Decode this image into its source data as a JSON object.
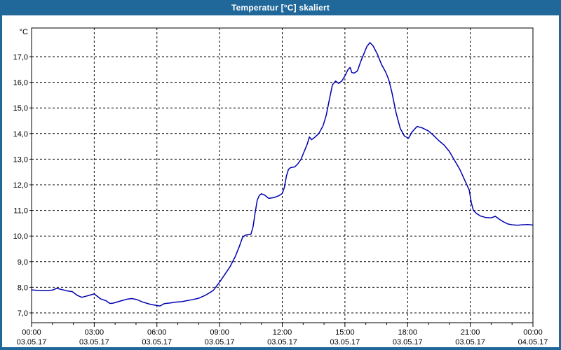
{
  "window": {
    "title": "Temperatur [°C] skaliert",
    "titlebar_color": "#1F6899",
    "border_color": "#1F6899"
  },
  "chart_data": {
    "type": "line",
    "title": "Temperatur [°C] skaliert",
    "unit_label": "°C",
    "series_name": "Temperatur",
    "series_color": "#0000B0",
    "grid": "dashed-black",
    "legend": "none",
    "xlim_hours": [
      0,
      24
    ],
    "ylim": [
      6.6,
      18.1
    ],
    "y_ticks": [
      {
        "value": 7,
        "label": "7,0"
      },
      {
        "value": 8,
        "label": "8,0"
      },
      {
        "value": 9,
        "label": "9,0"
      },
      {
        "value": 10,
        "label": "10,0"
      },
      {
        "value": 11,
        "label": "11,0"
      },
      {
        "value": 12,
        "label": "12,0"
      },
      {
        "value": 13,
        "label": "13,0"
      },
      {
        "value": 14,
        "label": "14,0"
      },
      {
        "value": 15,
        "label": "15,0"
      },
      {
        "value": 16,
        "label": "16,0"
      },
      {
        "value": 17,
        "label": "17,0"
      }
    ],
    "x_ticks": [
      {
        "hour": 0,
        "time": "00:00",
        "date": "03.05.17"
      },
      {
        "hour": 3,
        "time": "03:00",
        "date": "03.05.17"
      },
      {
        "hour": 6,
        "time": "06:00",
        "date": "03.05.17"
      },
      {
        "hour": 9,
        "time": "09:00",
        "date": "03.05.17"
      },
      {
        "hour": 12,
        "time": "12:00",
        "date": "03.05.17"
      },
      {
        "hour": 15,
        "time": "15:00",
        "date": "03.05.17"
      },
      {
        "hour": 18,
        "time": "18:00",
        "date": "03.05.17"
      },
      {
        "hour": 21,
        "time": "21:00",
        "date": "03.05.17"
      },
      {
        "hour": 24,
        "time": "00:00",
        "date": "04.05.17"
      }
    ],
    "x_minor_tick_every_hours": 1,
    "points": [
      [
        0.0,
        7.9
      ],
      [
        0.25,
        7.88
      ],
      [
        0.5,
        7.87
      ],
      [
        0.75,
        7.87
      ],
      [
        1.0,
        7.89
      ],
      [
        1.2,
        7.96
      ],
      [
        1.4,
        7.92
      ],
      [
        1.7,
        7.86
      ],
      [
        1.95,
        7.83
      ],
      [
        2.2,
        7.68
      ],
      [
        2.4,
        7.61
      ],
      [
        2.6,
        7.65
      ],
      [
        3.0,
        7.74
      ],
      [
        3.3,
        7.55
      ],
      [
        3.55,
        7.48
      ],
      [
        3.75,
        7.37
      ],
      [
        3.9,
        7.38
      ],
      [
        4.2,
        7.45
      ],
      [
        4.6,
        7.54
      ],
      [
        4.8,
        7.56
      ],
      [
        5.05,
        7.52
      ],
      [
        5.3,
        7.43
      ],
      [
        5.7,
        7.33
      ],
      [
        6.0,
        7.29
      ],
      [
        6.15,
        7.27
      ],
      [
        6.35,
        7.36
      ],
      [
        6.65,
        7.39
      ],
      [
        6.9,
        7.42
      ],
      [
        7.2,
        7.44
      ],
      [
        7.65,
        7.51
      ],
      [
        8.0,
        7.57
      ],
      [
        8.3,
        7.68
      ],
      [
        8.55,
        7.8
      ],
      [
        8.7,
        7.88
      ],
      [
        9.0,
        8.2
      ],
      [
        9.25,
        8.5
      ],
      [
        9.5,
        8.8
      ],
      [
        9.75,
        9.2
      ],
      [
        9.95,
        9.6
      ],
      [
        10.1,
        9.95
      ],
      [
        10.25,
        10.04
      ],
      [
        10.5,
        10.07
      ],
      [
        10.6,
        10.35
      ],
      [
        10.7,
        10.9
      ],
      [
        10.8,
        11.4
      ],
      [
        10.9,
        11.58
      ],
      [
        11.0,
        11.65
      ],
      [
        11.15,
        11.6
      ],
      [
        11.35,
        11.47
      ],
      [
        11.6,
        11.5
      ],
      [
        11.85,
        11.58
      ],
      [
        12.0,
        11.66
      ],
      [
        12.1,
        11.9
      ],
      [
        12.2,
        12.35
      ],
      [
        12.3,
        12.6
      ],
      [
        12.4,
        12.67
      ],
      [
        12.6,
        12.7
      ],
      [
        12.75,
        12.82
      ],
      [
        12.9,
        13.0
      ],
      [
        13.05,
        13.3
      ],
      [
        13.2,
        13.6
      ],
      [
        13.3,
        13.87
      ],
      [
        13.4,
        13.76
      ],
      [
        13.55,
        13.85
      ],
      [
        13.75,
        14.0
      ],
      [
        13.95,
        14.3
      ],
      [
        14.1,
        14.7
      ],
      [
        14.25,
        15.3
      ],
      [
        14.4,
        15.9
      ],
      [
        14.55,
        16.05
      ],
      [
        14.7,
        15.96
      ],
      [
        14.85,
        16.05
      ],
      [
        15.0,
        16.25
      ],
      [
        15.15,
        16.5
      ],
      [
        15.25,
        16.58
      ],
      [
        15.33,
        16.38
      ],
      [
        15.45,
        16.36
      ],
      [
        15.6,
        16.45
      ],
      [
        15.75,
        16.8
      ],
      [
        15.9,
        17.1
      ],
      [
        16.05,
        17.4
      ],
      [
        16.2,
        17.55
      ],
      [
        16.35,
        17.42
      ],
      [
        16.55,
        17.1
      ],
      [
        16.75,
        16.7
      ],
      [
        16.95,
        16.4
      ],
      [
        17.1,
        16.1
      ],
      [
        17.25,
        15.6
      ],
      [
        17.45,
        14.8
      ],
      [
        17.65,
        14.2
      ],
      [
        17.85,
        13.9
      ],
      [
        18.05,
        13.82
      ],
      [
        18.2,
        14.05
      ],
      [
        18.45,
        14.28
      ],
      [
        18.7,
        14.22
      ],
      [
        19.0,
        14.1
      ],
      [
        19.25,
        13.92
      ],
      [
        19.5,
        13.72
      ],
      [
        19.75,
        13.55
      ],
      [
        20.0,
        13.3
      ],
      [
        20.25,
        12.95
      ],
      [
        20.5,
        12.6
      ],
      [
        20.75,
        12.15
      ],
      [
        20.95,
        11.8
      ],
      [
        21.05,
        11.3
      ],
      [
        21.15,
        11.0
      ],
      [
        21.3,
        10.88
      ],
      [
        21.5,
        10.78
      ],
      [
        21.75,
        10.72
      ],
      [
        22.0,
        10.71
      ],
      [
        22.2,
        10.77
      ],
      [
        22.4,
        10.65
      ],
      [
        22.6,
        10.55
      ],
      [
        22.8,
        10.47
      ],
      [
        23.0,
        10.44
      ],
      [
        23.25,
        10.42
      ],
      [
        23.5,
        10.44
      ],
      [
        23.75,
        10.45
      ],
      [
        24.0,
        10.43
      ]
    ]
  }
}
